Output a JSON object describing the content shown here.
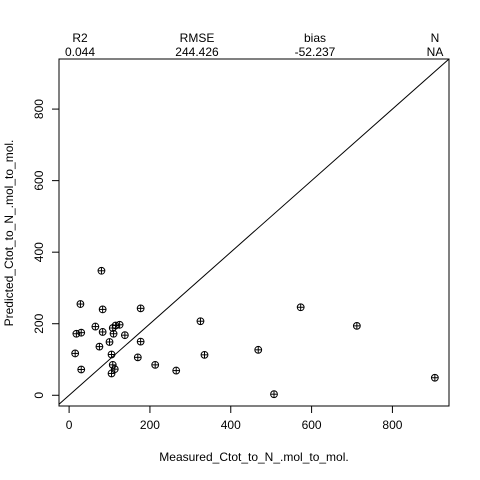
{
  "chart_data": {
    "type": "scatter",
    "title": "",
    "xlabel": "Measured_Ctot_to_N_.mol_to_mol.",
    "ylabel": "Predicted_Ctot_to_N_.mol_to_mol.",
    "xlim": [
      -25,
      940
    ],
    "ylim": [
      -30,
      940
    ],
    "x_ticks": [
      0,
      200,
      400,
      600,
      800
    ],
    "y_ticks": [
      0,
      200,
      400,
      600,
      800
    ],
    "grid": false,
    "reference_line": "y = x",
    "marker": "circle-plus",
    "stats": [
      {
        "label": "R2",
        "value": "0.044"
      },
      {
        "label": "RMSE",
        "value": "244.426"
      },
      {
        "label": "bias",
        "value": "-52.237"
      },
      {
        "label": "N",
        "value": "NA"
      }
    ],
    "points": [
      {
        "x": 80,
        "y": 348
      },
      {
        "x": 28,
        "y": 255
      },
      {
        "x": 83,
        "y": 240
      },
      {
        "x": 177,
        "y": 243
      },
      {
        "x": 325,
        "y": 207
      },
      {
        "x": 573,
        "y": 246
      },
      {
        "x": 712,
        "y": 194
      },
      {
        "x": 65,
        "y": 192
      },
      {
        "x": 115,
        "y": 195
      },
      {
        "x": 108,
        "y": 188
      },
      {
        "x": 125,
        "y": 197
      },
      {
        "x": 18,
        "y": 172
      },
      {
        "x": 30,
        "y": 175
      },
      {
        "x": 83,
        "y": 177
      },
      {
        "x": 110,
        "y": 172
      },
      {
        "x": 138,
        "y": 168
      },
      {
        "x": 100,
        "y": 149
      },
      {
        "x": 177,
        "y": 150
      },
      {
        "x": 75,
        "y": 136
      },
      {
        "x": 468,
        "y": 127
      },
      {
        "x": 15,
        "y": 117
      },
      {
        "x": 105,
        "y": 114
      },
      {
        "x": 170,
        "y": 106
      },
      {
        "x": 335,
        "y": 113
      },
      {
        "x": 108,
        "y": 85
      },
      {
        "x": 213,
        "y": 85
      },
      {
        "x": 30,
        "y": 72
      },
      {
        "x": 113,
        "y": 73
      },
      {
        "x": 265,
        "y": 69
      },
      {
        "x": 105,
        "y": 61
      },
      {
        "x": 507,
        "y": 3
      },
      {
        "x": 905,
        "y": 49
      }
    ]
  }
}
